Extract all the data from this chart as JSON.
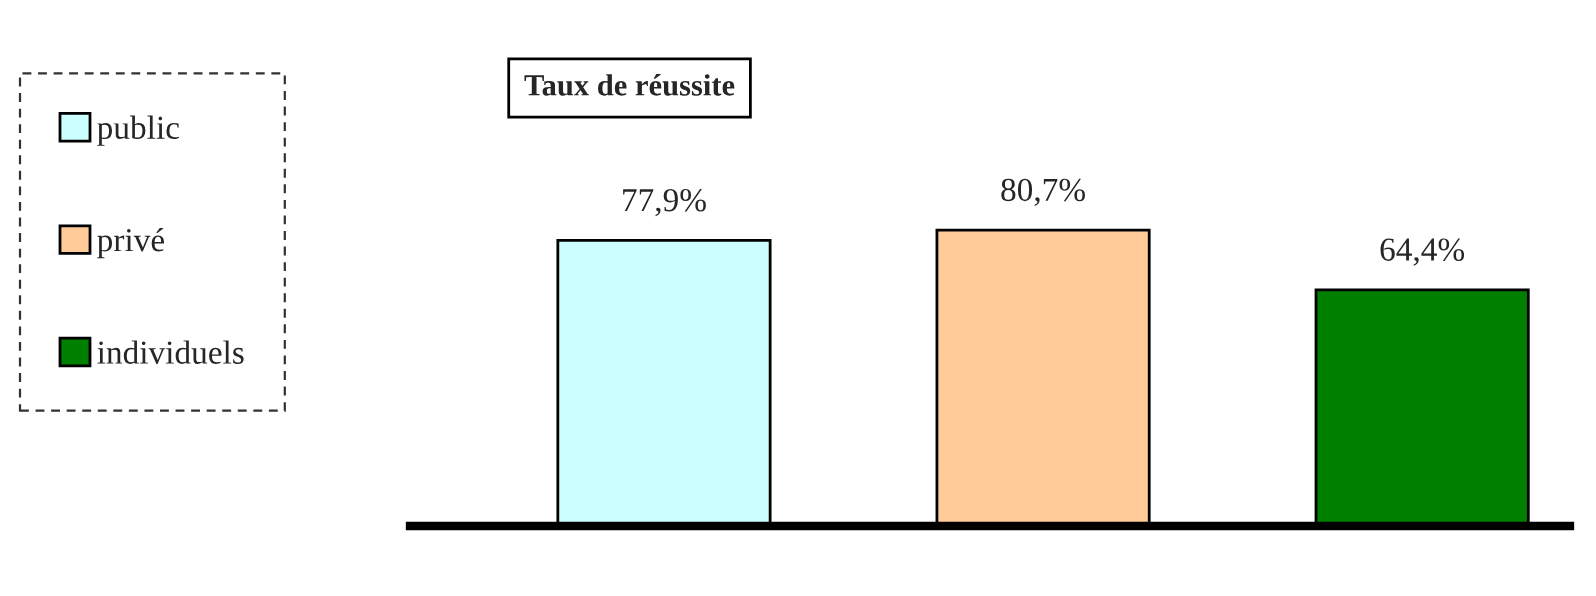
{
  "chart_data": {
    "type": "bar",
    "title": "Taux de réussite",
    "categories": [
      null,
      null,
      null
    ],
    "stacked": true,
    "series": [
      {
        "name": "public",
        "color": "#ccffff",
        "values": [
          77.9,
          null,
          null
        ],
        "value_labels": [
          "77,9%",
          null,
          null
        ]
      },
      {
        "name": "privé",
        "color": "#ffcc99",
        "values": [
          null,
          80.7,
          null
        ],
        "value_labels": [
          null,
          "80,7%",
          null
        ]
      },
      {
        "name": "individuels",
        "color": "#008000",
        "values": [
          null,
          null,
          64.4
        ],
        "value_labels": [
          null,
          null,
          "64,4%"
        ]
      }
    ],
    "legend": "left",
    "grid": false
  }
}
